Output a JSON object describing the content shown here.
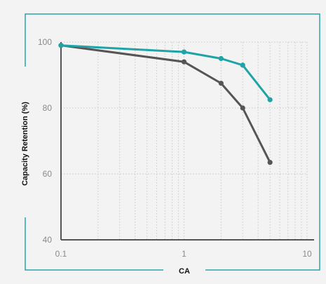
{
  "colors": {
    "background": "#f3f3f3",
    "frame": "#2aa3ae",
    "gridline": "#c9c9c9",
    "axis": "#555555",
    "tick_text": "#8a8a8a"
  },
  "chart_data": {
    "type": "line",
    "xlabel": "CA",
    "ylabel": "Capacity Retention (%)",
    "xscale": "log",
    "xlim": [
      0.1,
      10
    ],
    "ylim": [
      40,
      100
    ],
    "xticks": [
      "0.1",
      "1",
      "10"
    ],
    "yticks": [
      "40",
      "60",
      "80",
      "100"
    ],
    "grid": "vertical-minor-dotted, horizontal-dotted",
    "series": [
      {
        "color": "#1fa3a6",
        "x": [
          0.1,
          1,
          2,
          3,
          5
        ],
        "y": [
          99,
          97,
          95,
          93,
          82.5
        ]
      },
      {
        "color": "#555555",
        "x": [
          0.1,
          1,
          2,
          3,
          5
        ],
        "y": [
          99,
          94,
          87.5,
          80,
          63.5
        ]
      }
    ]
  }
}
